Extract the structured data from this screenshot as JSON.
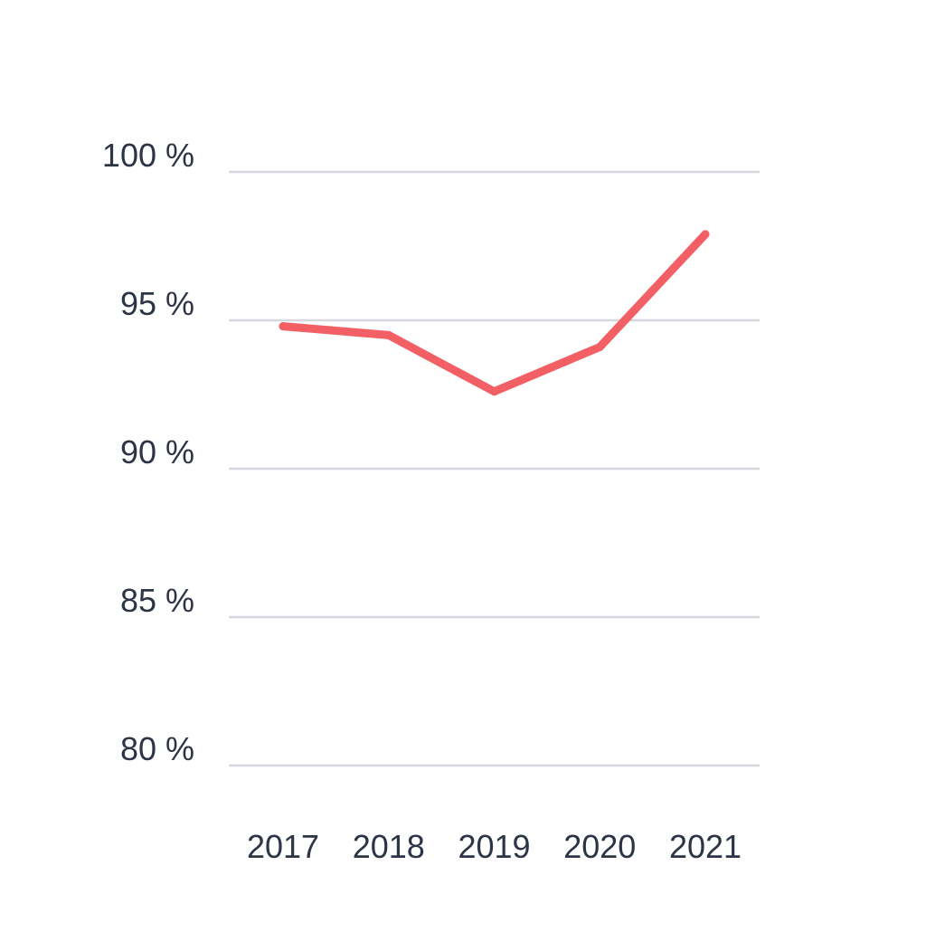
{
  "chart_data": {
    "type": "line",
    "title": "",
    "xlabel": "",
    "ylabel": "",
    "categories": [
      "2017",
      "2018",
      "2019",
      "2020",
      "2021"
    ],
    "series": [
      {
        "values": [
          94.8,
          94.5,
          92.6,
          94.1,
          97.9
        ],
        "color": "#f26065"
      }
    ],
    "yticks": [
      80,
      85,
      90,
      95,
      100
    ],
    "ytick_labels": [
      "80 %",
      "85 %",
      "90 %",
      "95 %",
      "100 %"
    ],
    "ylim": [
      80,
      100
    ],
    "grid": true,
    "legend": "none",
    "gridline_color": "#d6d8de",
    "text_color": "#2d3446"
  }
}
